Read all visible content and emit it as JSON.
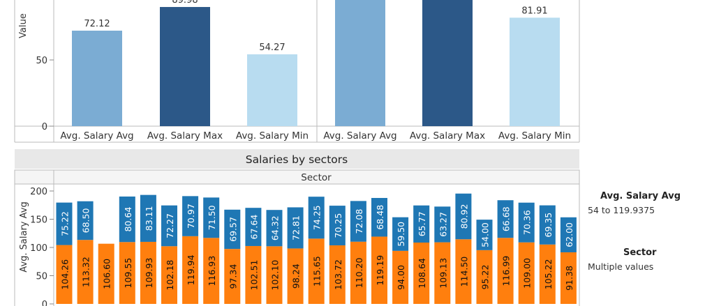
{
  "top_panel": {
    "y_axis_label": "Value",
    "y_ticks": [
      "50",
      "0"
    ],
    "y_tick_values": [
      50,
      0
    ],
    "ylim_visible": [
      0,
      105
    ]
  },
  "salaries_title": "Salaries by sectors",
  "sector_header": "Sector",
  "legend": {
    "avg_title": "Avg. Salary Avg",
    "avg_range": "54 to 119.9375",
    "sector_title": "Sector",
    "sector_value": "Multiple values"
  },
  "colors": {
    "avg": "#7bacd3",
    "max": "#2c5888",
    "min": "#b8dcf0",
    "stack_top": "#1f77b4",
    "stack_bottom": "#ff7f0e",
    "grid": "#888888",
    "header_bg": "#e8e8e8"
  },
  "chart_data": [
    {
      "type": "bar",
      "panel": "left",
      "categories": [
        "Avg. Salary Avg",
        "Avg. Salary Max",
        "Avg. Salary Min"
      ],
      "values": [
        72.12,
        89.98,
        54.27
      ],
      "value_labels": [
        "72.12",
        "89.98",
        "54.27"
      ],
      "ylabel": "Value",
      "ylim": [
        0,
        105
      ]
    },
    {
      "type": "bar",
      "panel": "right",
      "categories": [
        "Avg. Salary Avg",
        "Avg. Salary Max",
        "Avg. Salary Min"
      ],
      "values": [
        100,
        110,
        81.91
      ],
      "value_labels": [
        "",
        "",
        "81.91"
      ],
      "ylim": [
        0,
        105
      ]
    },
    {
      "type": "bar",
      "stacked": true,
      "title": "Salaries by sectors",
      "xlabel": "Sector",
      "ylabel": "Avg. Salary Avg",
      "ylim": [
        0,
        200
      ],
      "y_ticks": [
        "200",
        "150",
        "100",
        "50",
        "0"
      ],
      "y_tick_values": [
        200,
        150,
        100,
        50,
        0
      ],
      "series": [
        {
          "role": "bottom",
          "values": [
            104.26,
            113.32,
            106.6,
            109.55,
            109.93,
            102.18,
            119.94,
            116.93,
            97.34,
            102.51,
            102.1,
            98.24,
            115.65,
            103.72,
            110.2,
            119.19,
            94.0,
            108.64,
            109.13,
            114.5,
            95.22,
            116.99,
            109.0,
            105.22,
            91.38
          ],
          "labels": [
            "104.26",
            "113.32",
            "106.60",
            "109.55",
            "109.93",
            "102.18",
            "119.94",
            "116.93",
            "97.34",
            "102.51",
            "102.10",
            "98.24",
            "115.65",
            "103.72",
            "110.20",
            "119.19",
            "94.00",
            "108.64",
            "109.13",
            "114.50",
            "95.22",
            "116.99",
            "109.00",
            "105.22",
            "91.38"
          ]
        },
        {
          "role": "top",
          "values": [
            75.22,
            68.5,
            0,
            80.64,
            83.11,
            72.27,
            70.97,
            71.5,
            69.57,
            67.64,
            64.32,
            72.81,
            74.25,
            70.25,
            72.08,
            68.48,
            59.5,
            65.77,
            63.27,
            80.92,
            54.0,
            66.68,
            70.36,
            69.35,
            62.0
          ],
          "labels": [
            "75.22",
            "68.50",
            "",
            "80.64",
            "83.11",
            "72.27",
            "70.97",
            "71.50",
            "69.57",
            "67.64",
            "64.32",
            "72.81",
            "74.25",
            "70.25",
            "72.08",
            "68.48",
            "59.50",
            "65.77",
            "63.27",
            "80.92",
            "54.00",
            "66.68",
            "70.36",
            "69.35",
            "62.00"
          ]
        }
      ]
    }
  ]
}
